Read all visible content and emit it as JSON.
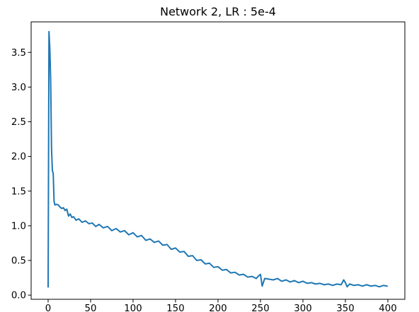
{
  "chart_data": {
    "type": "line",
    "title": "Network 2, LR : 5e-4",
    "xlabel": "",
    "ylabel": "",
    "xlim": [
      -20,
      420
    ],
    "ylim": [
      -0.06,
      3.94
    ],
    "xticks": [
      0,
      50,
      100,
      150,
      200,
      250,
      300,
      350,
      400
    ],
    "yticks": [
      0.0,
      0.5,
      1.0,
      1.5,
      2.0,
      2.5,
      3.0,
      3.5
    ],
    "xtick_labels": [
      "0",
      "50",
      "100",
      "150",
      "200",
      "250",
      "300",
      "350",
      "400"
    ],
    "ytick_labels": [
      "0.0",
      "0.5",
      "1.0",
      "1.5",
      "2.0",
      "2.5",
      "3.0",
      "3.5"
    ],
    "grid": false,
    "line_color": "#1f77b4",
    "series": [
      {
        "points": [
          [
            0,
            0.12
          ],
          [
            1,
            3.8
          ],
          [
            2,
            3.55
          ],
          [
            3,
            3.1
          ],
          [
            4,
            2.1
          ],
          [
            5,
            1.8
          ],
          [
            6,
            1.75
          ],
          [
            7,
            1.35
          ],
          [
            8,
            1.3
          ],
          [
            10,
            1.31
          ],
          [
            12,
            1.3
          ],
          [
            14,
            1.27
          ],
          [
            16,
            1.25
          ],
          [
            18,
            1.26
          ],
          [
            20,
            1.22
          ],
          [
            22,
            1.24
          ],
          [
            24,
            1.14
          ],
          [
            26,
            1.17
          ],
          [
            28,
            1.12
          ],
          [
            30,
            1.13
          ],
          [
            33,
            1.08
          ],
          [
            36,
            1.1
          ],
          [
            40,
            1.05
          ],
          [
            44,
            1.07
          ],
          [
            48,
            1.03
          ],
          [
            52,
            1.04
          ],
          [
            56,
            0.99
          ],
          [
            60,
            1.02
          ],
          [
            65,
            0.97
          ],
          [
            70,
            0.99
          ],
          [
            75,
            0.93
          ],
          [
            80,
            0.96
          ],
          [
            85,
            0.91
          ],
          [
            90,
            0.93
          ],
          [
            95,
            0.87
          ],
          [
            100,
            0.9
          ],
          [
            105,
            0.84
          ],
          [
            110,
            0.86
          ],
          [
            115,
            0.79
          ],
          [
            120,
            0.81
          ],
          [
            125,
            0.76
          ],
          [
            130,
            0.78
          ],
          [
            135,
            0.72
          ],
          [
            140,
            0.73
          ],
          [
            145,
            0.66
          ],
          [
            150,
            0.68
          ],
          [
            155,
            0.62
          ],
          [
            160,
            0.63
          ],
          [
            165,
            0.56
          ],
          [
            170,
            0.57
          ],
          [
            175,
            0.5
          ],
          [
            180,
            0.51
          ],
          [
            185,
            0.45
          ],
          [
            190,
            0.46
          ],
          [
            195,
            0.4
          ],
          [
            200,
            0.41
          ],
          [
            205,
            0.36
          ],
          [
            210,
            0.37
          ],
          [
            215,
            0.32
          ],
          [
            220,
            0.33
          ],
          [
            225,
            0.29
          ],
          [
            230,
            0.3
          ],
          [
            235,
            0.26
          ],
          [
            240,
            0.27
          ],
          [
            245,
            0.24
          ],
          [
            248,
            0.28
          ],
          [
            250,
            0.3
          ],
          [
            252,
            0.13
          ],
          [
            255,
            0.24
          ],
          [
            260,
            0.23
          ],
          [
            265,
            0.22
          ],
          [
            270,
            0.24
          ],
          [
            275,
            0.2
          ],
          [
            280,
            0.22
          ],
          [
            285,
            0.19
          ],
          [
            290,
            0.21
          ],
          [
            295,
            0.18
          ],
          [
            300,
            0.2
          ],
          [
            305,
            0.17
          ],
          [
            310,
            0.18
          ],
          [
            315,
            0.16
          ],
          [
            320,
            0.17
          ],
          [
            325,
            0.15
          ],
          [
            330,
            0.16
          ],
          [
            335,
            0.14
          ],
          [
            340,
            0.16
          ],
          [
            345,
            0.15
          ],
          [
            348,
            0.22
          ],
          [
            350,
            0.18
          ],
          [
            352,
            0.12
          ],
          [
            355,
            0.16
          ],
          [
            360,
            0.14
          ],
          [
            365,
            0.15
          ],
          [
            370,
            0.13
          ],
          [
            375,
            0.15
          ],
          [
            380,
            0.13
          ],
          [
            385,
            0.14
          ],
          [
            390,
            0.12
          ],
          [
            395,
            0.14
          ],
          [
            399,
            0.13
          ]
        ]
      }
    ]
  }
}
